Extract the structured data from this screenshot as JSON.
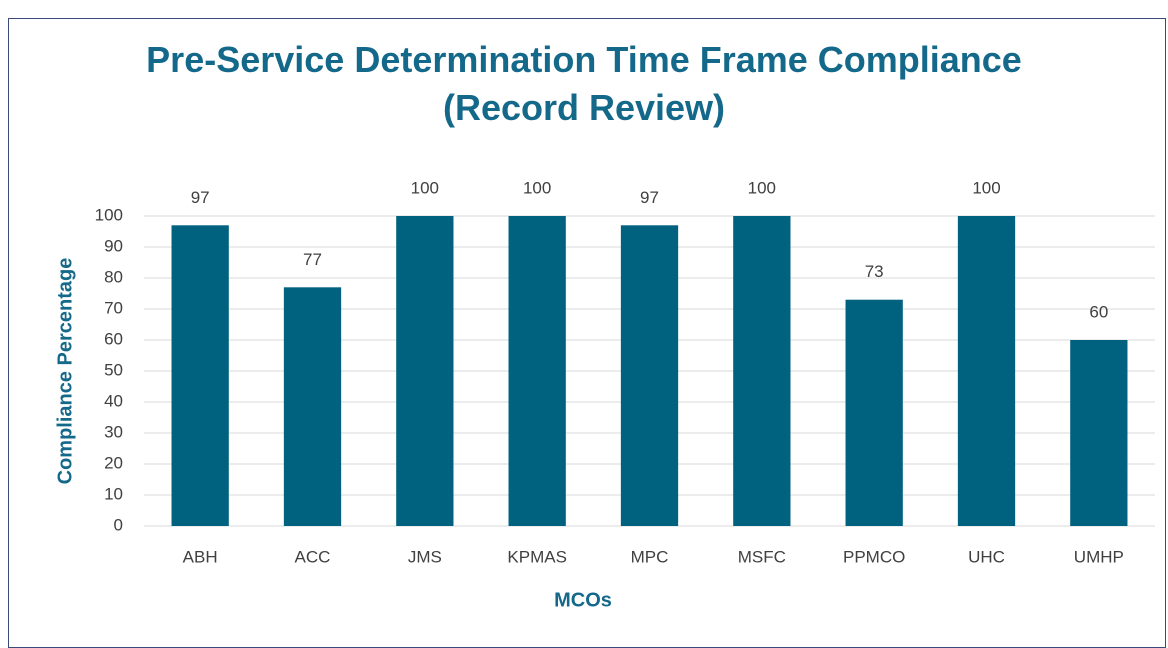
{
  "chart_data": {
    "type": "bar",
    "title": "Pre-Service Determination Time Frame Compliance (Record Review)",
    "x_label": "MCOs",
    "y_label": "Compliance Percentage",
    "categories": [
      "ABH",
      "ACC",
      "JMS",
      "KPMAS",
      "MPC",
      "MSFC",
      "PPMCO",
      "UHC",
      "UMHP"
    ],
    "values": [
      97,
      77,
      100,
      100,
      97,
      100,
      73,
      100,
      60
    ],
    "color": "#00627e",
    "ylim": [
      0,
      100
    ],
    "yticks": [
      0,
      10,
      20,
      30,
      40,
      50,
      60,
      70,
      80,
      90,
      100
    ],
    "grid": true
  }
}
